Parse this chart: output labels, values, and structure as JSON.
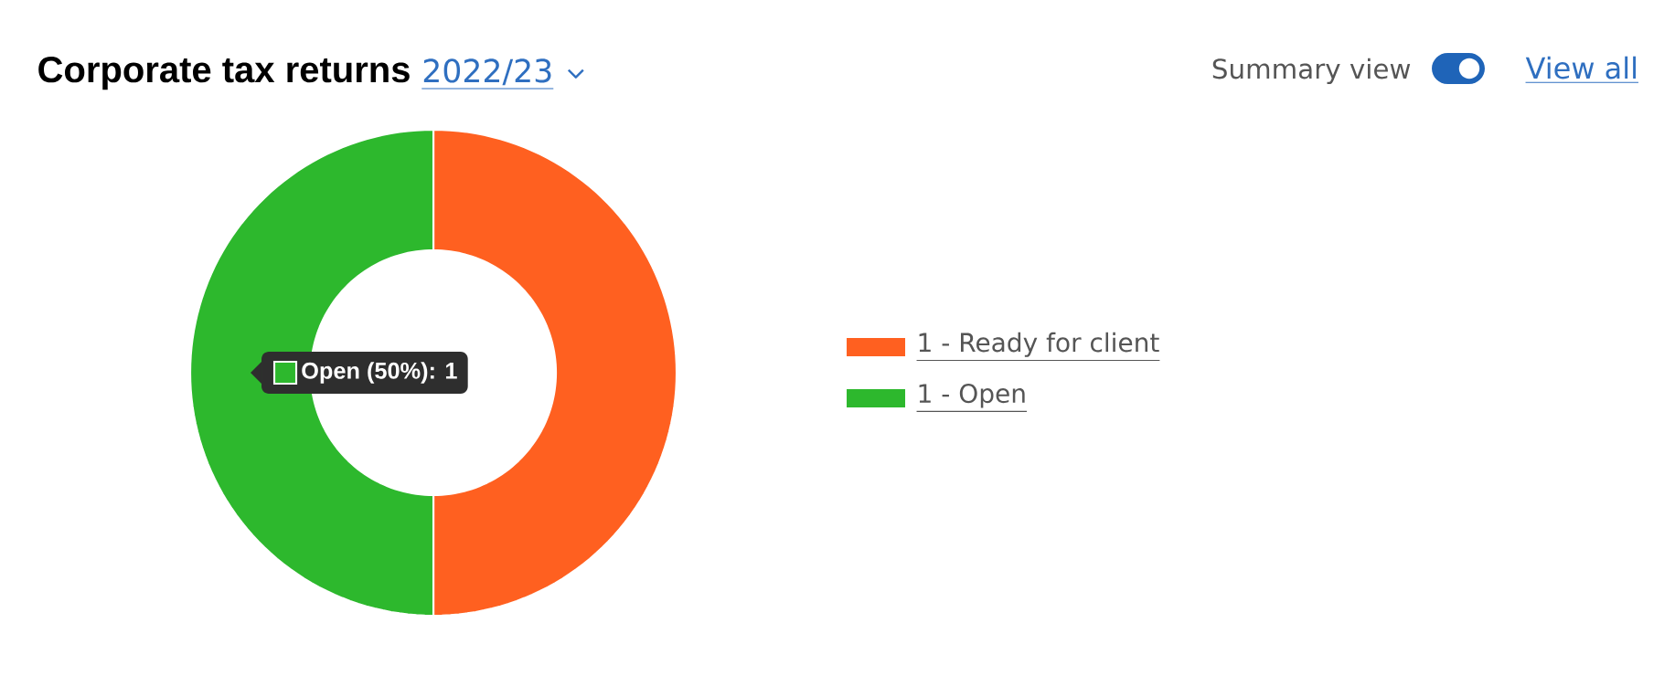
{
  "chart_data": {
    "type": "donut",
    "title": "Corporate tax returns",
    "subtitle": "2022/23",
    "categories": [
      "1 - Ready for client",
      "1 - Open"
    ],
    "values": [
      1,
      1
    ],
    "colors": [
      "#ff6020",
      "#2db82d"
    ],
    "legend": "right",
    "annotations": [
      "Open (50%): 1",
      "Summary view",
      "View all"
    ]
  }
}
